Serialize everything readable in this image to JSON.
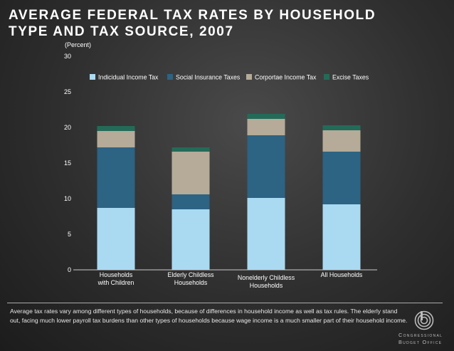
{
  "header": {
    "title": "AVERAGE FEDERAL TAX RATES BY HOUSEHOLD\nTYPE AND TAX SOURCE, 2007"
  },
  "colors": {
    "individual": "#a9daf2",
    "social": "#2d6383",
    "corporate": "#b5ab98",
    "excise": "#236b58",
    "axis_text": "#ffffff"
  },
  "chart_data": {
    "type": "bar",
    "stacked": true,
    "title": "AVERAGE FEDERAL TAX RATES BY HOUSEHOLD TYPE AND TAX SOURCE, 2007",
    "ylabel": "(Percent)",
    "xlabel": "",
    "ylim": [
      0,
      30
    ],
    "yticks": [
      0,
      5,
      10,
      15,
      20,
      25,
      30
    ],
    "grid": false,
    "legend_position": "top",
    "categories": [
      "Households\nwith Children",
      "Elderly Childless\nHouseholds",
      "Nonelderly Childless\nHouseholds",
      "All Households"
    ],
    "series": [
      {
        "name": "Indicidual Income Tax",
        "color_key": "individual",
        "values": [
          8.7,
          8.5,
          10.1,
          9.2
        ]
      },
      {
        "name": "Social Insurance Taxes",
        "color_key": "social",
        "values": [
          8.5,
          2.1,
          8.8,
          7.4
        ]
      },
      {
        "name": "Corportae Income Tax",
        "color_key": "corporate",
        "values": [
          2.3,
          6.0,
          2.3,
          3.0
        ]
      },
      {
        "name": "Excise Taxes",
        "color_key": "excise",
        "values": [
          0.7,
          0.6,
          0.7,
          0.7
        ]
      }
    ]
  },
  "footer": {
    "note": "Average tax rates vary among different types of households, because of differences in household income as well as tax rules. The elderly stand out, facing much lower payroll tax burdens than other types of households because wage income is a much smaller part of their household income.",
    "logo_line1": "Congressional",
    "logo_line2": "Budget Office"
  }
}
